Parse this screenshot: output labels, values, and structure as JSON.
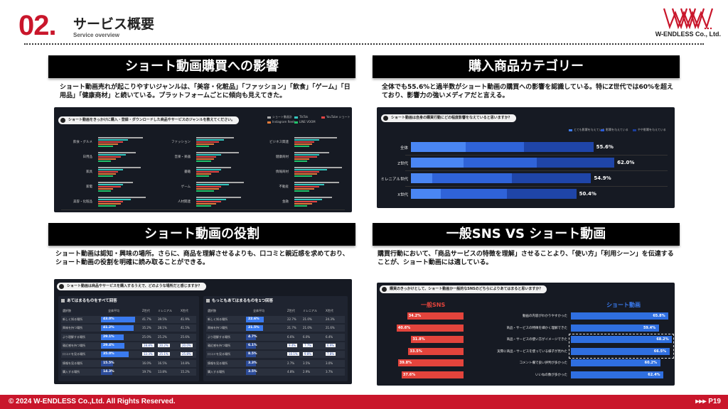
{
  "header": {
    "section_number": "02.",
    "title": "サービス概要",
    "subtitle": "Service overview",
    "logo_text": "W-ENDLESS Co., Ltd."
  },
  "sections": [
    {
      "title": "ショート動画購買への影響",
      "description": "ショート動画売れが起こりやすいジャンルは、「美容・化粧品」「ファッション」「飲食」「ゲーム」「日用品」「健康商材」と続いている。プラットフォームごとに傾向も見えてきた。",
      "question": "ショート動画をきっかけに購入・登録・ダウンロードした商品やサービスのジャンルを教えてください。",
      "legend": [
        "ショート動画計",
        "TikTok",
        "YouTube ショート",
        "Instagram Reels",
        "LINE VOOM"
      ],
      "legend_colors": [
        "#aaaaaa",
        "#35c8c0",
        "#e34545",
        "#e47b3a",
        "#22c36b"
      ],
      "categories_col1": [
        "飲食・グルメ",
        "日用品",
        "家具",
        "家電",
        "美容・化粧品"
      ],
      "categories_col2": [
        "ファッション",
        "音楽・楽器",
        "書籍",
        "ゲーム",
        "人材関連"
      ],
      "categories_col3": [
        "ビジネス関連",
        "健康商材",
        "情報商材",
        "不動産",
        "金融"
      ]
    },
    {
      "title": "購入商品カテゴリー",
      "description": "全体でも55.6%と過半数がショート動画の購買への影響を認識している。特にZ世代では60%を超えており、影響力の強いメディアだと言える。",
      "question": "ショート動画は自身の購買行動にどの程度影響をなえていると思いますか？",
      "legend": [
        "とても影響を与えている",
        "影響を与えている",
        "やや影響を与えている"
      ],
      "legend_colors": [
        "#3f7df0",
        "#2b5bd6",
        "#1c3d9a"
      ],
      "chart_data": {
        "type": "bar",
        "categories": [
          "全体",
          "Z世代",
          "ミレニアル世代",
          "X世代"
        ],
        "series_colors": [
          "#4a86f3",
          "#2f63d8",
          "#1f45a8"
        ],
        "values_total": [
          55.6,
          62.0,
          54.9,
          50.4
        ],
        "labels": [
          "55.6%",
          "62.0%",
          "54.9%",
          "50.4%"
        ]
      }
    },
    {
      "title": "ショート動画の役割",
      "description": "ショート動画は認知・興味の場所。さらに、商品を理解させるよりも、口コミと親近感を求めており、ショート動画の役割を明確に読み取ることができる。",
      "question": "ショート動画は商品やサービスを購入するうえで、どのような場所だと感じますか？",
      "table_left_title": "あてはまるものをすべて回答",
      "table_right_title": "もっともあてはまるものを1つ回答",
      "table_headers": [
        "選択肢",
        "全体平均",
        "Z世代",
        "ミレニアル",
        "X世代"
      ],
      "rows_left": [
        [
          "新しく知る場所",
          "43.0%",
          "41.7%",
          "39.5%",
          "41.9%"
        ],
        [
          "興味を持つ場所",
          "41.2%",
          "35.2%",
          "28.1%",
          "41.5%"
        ],
        [
          "より理解する場所",
          "29.1%",
          "25.0%",
          "25.2%",
          "25.6%"
        ],
        [
          "親近感を持つ場所",
          "29.4%",
          "28.8%",
          "20.2%",
          "20.0%"
        ],
        [
          "口コミを見る場所",
          "35.0%",
          "33.3%",
          "25.1%",
          "25.8%"
        ],
        [
          "情報を見る場所",
          "15.5%",
          "16.0%",
          "16.5%",
          "14.8%"
        ],
        [
          "購入する場所",
          "14.3%",
          "19.7%",
          "13.8%",
          "15.2%"
        ]
      ],
      "rows_right": [
        [
          "新しく知る場所",
          "22.6%",
          "22.7%",
          "21.0%",
          "24.3%"
        ],
        [
          "興味を持つ場所",
          "21.5%",
          "21.7%",
          "21.0%",
          "21.6%"
        ],
        [
          "より理解する場所",
          "4.7%",
          "6.6%",
          "6.0%",
          "6.4%"
        ],
        [
          "親近感を持つ場所",
          "6.1%",
          "9.4%",
          "7.7%",
          "6.9%"
        ],
        [
          "口コミを見る場所",
          "8.5%",
          "10.1%",
          "9.8%",
          "7.8%"
        ],
        [
          "情報を見る場所",
          "3.3%",
          "2.7%",
          "3.5%",
          "3.0%"
        ],
        [
          "購入する場所",
          "3.5%",
          "4.8%",
          "2.9%",
          "3.7%"
        ]
      ]
    },
    {
      "title": "一般SNS VS ショート動画",
      "description": "購買行動において、「商品サービスの特徴を理解」させることより、「使い方」「利用シーン」を伝達することが、ショート動画には適している。",
      "question": "購買のきっかけとして、ショート動画か一般的なSNSのどちらによりあてはまると思いますか？",
      "left_title": "一般SNS",
      "right_title": "ショート動画",
      "chart_data": {
        "type": "bar",
        "categories": [
          "動画の内容がわかりやすかった",
          "商品・サービスの特徴を細かく理解できた",
          "商品・サービスの使い方がイメージできた",
          "実際に商品・サービスを使っている様子が見れた",
          "コメント欄で良い評判が多かった",
          "いいねの数が多かった"
        ],
        "series": [
          {
            "name": "一般SNS",
            "values": [
              34.2,
              40.6,
              31.8,
              33.5,
              39.8,
              37.6
            ],
            "labels": [
              "34.2%",
              "40.6%",
              "31.8%",
              "33.5%",
              "39.8%",
              "37.6%"
            ]
          },
          {
            "name": "ショート動画",
            "values": [
              65.8,
              59.4,
              68.2,
              66.5,
              60.2,
              62.4
            ],
            "labels": [
              "65.8%",
              "59.4%",
              "68.2%",
              "66.5%",
              "60.2%",
              "62.4%"
            ]
          }
        ]
      }
    }
  ],
  "footer": {
    "copyright": "© 2024 W-ENDLESS Co.,Ltd. All Rights Reserved.",
    "page": "▸▸▸ P19"
  },
  "colors": {
    "accent_red": "#c9162b",
    "panel_bg": "#161a23",
    "sns_red": "#e3443c",
    "short_blue": "#2f6fe0"
  }
}
